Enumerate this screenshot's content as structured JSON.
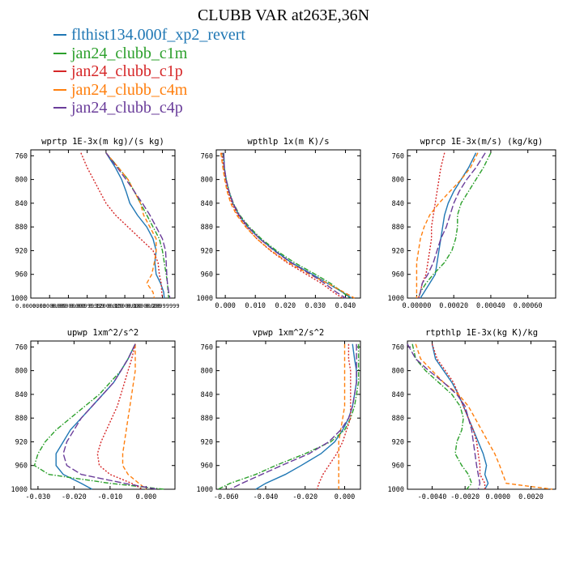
{
  "title": "CLUBB VAR at263E,36N",
  "series": [
    {
      "name": "flthist134.000f_xp2_revert",
      "color": "#1f77b4",
      "dash": ""
    },
    {
      "name": "jan24_clubb_c1m",
      "color": "#2ca02c",
      "dash": "6,2,1.5,2"
    },
    {
      "name": "jan24_clubb_c1p",
      "color": "#d62728",
      "dash": "2,2"
    },
    {
      "name": "jan24_clubb_c4m",
      "color": "#ff7f0e",
      "dash": "5,3"
    },
    {
      "name": "jan24_clubb_c4p",
      "color": "#6a3d9a",
      "dash": "8,3"
    }
  ],
  "chart_data": [
    {
      "type": "line",
      "title": "wprtp  1E-3x(m kg)/(s kg)",
      "xlim": [
        0.0,
        0.23
      ],
      "xticks": [
        0.0,
        0.03,
        0.06,
        0.09,
        0.12,
        0.15,
        0.18,
        0.21
      ],
      "xticklabels": [
        "0.0000000",
        "0.03000000",
        "0.06000000",
        "0.08999999",
        "0.12000000",
        "0.15000000",
        "0.18000000",
        "0.20999999"
      ],
      "ylim": [
        750,
        1000
      ],
      "yticks": [
        760,
        800,
        840,
        880,
        920,
        960,
        1000
      ],
      "y": [
        755,
        780,
        800,
        820,
        840,
        860,
        880,
        900,
        920,
        940,
        960,
        975,
        990,
        1000
      ],
      "series_values": [
        [
          0.12,
          0.135,
          0.145,
          0.152,
          0.158,
          0.17,
          0.185,
          0.195,
          0.2,
          0.198,
          0.2,
          0.207,
          0.212,
          0.213
        ],
        [
          0.12,
          0.14,
          0.155,
          0.165,
          0.175,
          0.185,
          0.195,
          0.205,
          0.21,
          0.213,
          0.216,
          0.218,
          0.219,
          0.22
        ],
        [
          0.08,
          0.09,
          0.1,
          0.11,
          0.12,
          0.135,
          0.155,
          0.175,
          0.195,
          0.203,
          0.205,
          0.208,
          0.209,
          0.21
        ],
        [
          0.12,
          0.14,
          0.155,
          0.165,
          0.175,
          0.18,
          0.19,
          0.2,
          0.2,
          0.197,
          0.193,
          0.185,
          0.195,
          0.197
        ],
        [
          0.12,
          0.138,
          0.152,
          0.165,
          0.178,
          0.19,
          0.2,
          0.21,
          0.215,
          0.216,
          0.217,
          0.218,
          0.22,
          0.222
        ]
      ]
    },
    {
      "type": "line",
      "title": "wpthlp  1x(m K)/s",
      "xlim": [
        -0.003,
        0.045
      ],
      "xticks": [
        0.0,
        0.01,
        0.02,
        0.03,
        0.04
      ],
      "xticklabels": [
        "0.000",
        "0.010",
        "0.020",
        "0.030",
        "0.040"
      ],
      "ylim": [
        750,
        1000
      ],
      "yticks": [
        760,
        800,
        840,
        880,
        920,
        960,
        1000
      ],
      "y": [
        755,
        780,
        800,
        820,
        840,
        860,
        880,
        900,
        920,
        940,
        960,
        975,
        990,
        1000
      ],
      "series_values": [
        [
          -0.0005,
          -0.0003,
          0.0003,
          0.0012,
          0.0025,
          0.0045,
          0.0075,
          0.0115,
          0.0165,
          0.022,
          0.029,
          0.034,
          0.039,
          0.042
        ],
        [
          -0.0008,
          -0.0004,
          0.0003,
          0.0013,
          0.0027,
          0.0048,
          0.008,
          0.012,
          0.017,
          0.023,
          0.03,
          0.035,
          0.039,
          0.0415
        ],
        [
          -0.0012,
          -0.0006,
          0.0,
          0.0009,
          0.0022,
          0.0042,
          0.007,
          0.0105,
          0.015,
          0.0205,
          0.027,
          0.032,
          0.036,
          0.039
        ],
        [
          -0.0015,
          -0.0008,
          -0.0002,
          0.0006,
          0.0018,
          0.0038,
          0.0068,
          0.0105,
          0.0152,
          0.021,
          0.028,
          0.034,
          0.0395,
          0.043
        ],
        [
          -0.0006,
          -0.0003,
          0.0003,
          0.0012,
          0.0026,
          0.0046,
          0.0076,
          0.0115,
          0.0162,
          0.0218,
          0.0285,
          0.033,
          0.037,
          0.04
        ]
      ]
    },
    {
      "type": "line",
      "title": "wprcp  1E-3x(m/s) (kg/kg)",
      "xlim": [
        -5e-05,
        0.00075
      ],
      "xticks": [
        0.0,
        0.0002,
        0.0004,
        0.0006
      ],
      "xticklabels": [
        "0.00000",
        "0.00020",
        "0.00040",
        "0.00060"
      ],
      "ylim": [
        750,
        1000
      ],
      "yticks": [
        760,
        800,
        840,
        880,
        920,
        960,
        1000
      ],
      "y": [
        755,
        780,
        800,
        820,
        840,
        860,
        880,
        900,
        920,
        940,
        960,
        975,
        990,
        1000
      ],
      "series_values": [
        [
          0.00032,
          0.00028,
          0.00024,
          0.0002,
          0.00017,
          0.00015,
          0.00014,
          0.00013,
          0.00012,
          0.00011,
          0.0001,
          7e-05,
          4e-05,
          2e-05
        ],
        [
          0.0004,
          0.00036,
          0.00032,
          0.00028,
          0.00024,
          0.00022,
          0.00022,
          0.00021,
          0.00019,
          0.00015,
          9e-05,
          5e-05,
          2e-05,
          1e-05
        ],
        [
          0.00015,
          0.00013,
          0.00012,
          0.00011,
          0.0001,
          9e-05,
          8e-05,
          8e-05,
          7e-05,
          6e-05,
          5e-05,
          3e-05,
          2e-05,
          1e-05
        ],
        [
          0.00033,
          0.00029,
          0.00024,
          0.00018,
          0.00012,
          7e-05,
          4e-05,
          2e-05,
          1e-05,
          0.0,
          0.0,
          0.0,
          0.0,
          0.0
        ],
        [
          0.00037,
          0.00032,
          0.00027,
          0.00023,
          0.0002,
          0.00018,
          0.00016,
          0.00013,
          0.00011,
          9e-05,
          6e-05,
          3e-05,
          2e-05,
          1e-05
        ]
      ]
    },
    {
      "type": "line",
      "title": "upwp  1xm^2/s^2",
      "xlim": [
        -0.032,
        0.008
      ],
      "xticks": [
        -0.03,
        -0.02,
        -0.01,
        0.0
      ],
      "xticklabels": [
        "-0.030",
        "-0.020",
        "-0.010",
        "0.000"
      ],
      "ylim": [
        750,
        1000
      ],
      "yticks": [
        760,
        800,
        840,
        880,
        920,
        960,
        1000
      ],
      "y": [
        755,
        780,
        800,
        820,
        840,
        860,
        880,
        900,
        920,
        940,
        960,
        975,
        990,
        1000
      ],
      "series_values": [
        [
          -0.003,
          -0.005,
          -0.007,
          -0.009,
          -0.012,
          -0.015,
          -0.018,
          -0.021,
          -0.023,
          -0.025,
          -0.025,
          -0.023,
          -0.018,
          -0.015
        ],
        [
          -0.003,
          -0.005,
          -0.007,
          -0.01,
          -0.013,
          -0.017,
          -0.021,
          -0.025,
          -0.028,
          -0.03,
          -0.031,
          -0.027,
          -0.01,
          0.005
        ],
        [
          -0.003,
          -0.004,
          -0.005,
          -0.006,
          -0.007,
          -0.008,
          -0.0095,
          -0.011,
          -0.0125,
          -0.0135,
          -0.013,
          -0.01,
          -0.004,
          -0.001
        ],
        [
          -0.003,
          -0.003,
          -0.003,
          -0.0035,
          -0.004,
          -0.0045,
          -0.005,
          -0.0055,
          -0.006,
          -0.0065,
          -0.0065,
          -0.005,
          -0.002,
          0.0
        ],
        [
          -0.003,
          -0.005,
          -0.007,
          -0.009,
          -0.012,
          -0.015,
          -0.018,
          -0.02,
          -0.022,
          -0.023,
          -0.022,
          -0.018,
          -0.006,
          0.003
        ]
      ]
    },
    {
      "type": "line",
      "title": "vpwp  1xm^2/s^2",
      "xlim": [
        -0.065,
        0.008
      ],
      "xticks": [
        -0.06,
        -0.04,
        -0.02,
        0.0
      ],
      "xticklabels": [
        "-0.060",
        "-0.040",
        "-0.020",
        "0.000"
      ],
      "ylim": [
        750,
        1000
      ],
      "yticks": [
        760,
        800,
        840,
        880,
        920,
        960,
        1000
      ],
      "y": [
        755,
        780,
        800,
        820,
        840,
        860,
        880,
        900,
        920,
        940,
        960,
        975,
        990,
        1000
      ],
      "series_values": [
        [
          0.004,
          0.005,
          0.006,
          0.006,
          0.005,
          0.004,
          0.002,
          -0.001,
          -0.005,
          -0.012,
          -0.022,
          -0.03,
          -0.04,
          -0.045
        ],
        [
          0.007,
          0.007,
          0.007,
          0.007,
          0.006,
          0.005,
          0.003,
          0.0,
          -0.007,
          -0.02,
          -0.035,
          -0.045,
          -0.058,
          -0.064
        ],
        [
          0.002,
          0.002,
          0.003,
          0.003,
          0.003,
          0.003,
          0.003,
          0.001,
          -0.001,
          -0.004,
          -0.008,
          -0.011,
          -0.013,
          -0.014
        ],
        [
          0.0,
          0.0,
          0.0,
          0.0,
          0.0,
          0.0,
          -0.001,
          -0.002,
          -0.003,
          -0.003,
          -0.003,
          -0.003,
          -0.003,
          -0.003
        ],
        [
          0.006,
          0.006,
          0.006,
          0.006,
          0.005,
          0.004,
          0.002,
          -0.002,
          -0.008,
          -0.018,
          -0.032,
          -0.042,
          -0.052,
          -0.058
        ]
      ]
    },
    {
      "type": "line",
      "title": "rtpthlp  1E-3x(kg K)/kg",
      "xlim": [
        -0.0055,
        0.0035
      ],
      "xticks": [
        -0.004,
        -0.002,
        0.0,
        0.002
      ],
      "xticklabels": [
        "-0.0040",
        "-0.0020",
        "0.0000",
        "0.0020"
      ],
      "ylim": [
        750,
        1000
      ],
      "yticks": [
        760,
        800,
        840,
        880,
        920,
        960,
        1000
      ],
      "y": [
        755,
        780,
        800,
        820,
        840,
        860,
        880,
        900,
        920,
        940,
        960,
        975,
        990,
        1000
      ],
      "series_values": [
        [
          -0.004,
          -0.0038,
          -0.0033,
          -0.0028,
          -0.0024,
          -0.0021,
          -0.0018,
          -0.0015,
          -0.0012,
          -0.0009,
          -0.0007,
          -0.0008,
          -0.0006,
          -0.0008
        ],
        [
          -0.0052,
          -0.005,
          -0.0044,
          -0.0036,
          -0.0028,
          -0.0023,
          -0.0021,
          -0.0022,
          -0.0025,
          -0.0026,
          -0.0022,
          -0.0018,
          -0.0016,
          -0.0019
        ],
        [
          -0.004,
          -0.0037,
          -0.0032,
          -0.0027,
          -0.0024,
          -0.0021,
          -0.0018,
          -0.0015,
          -0.0013,
          -0.0012,
          -0.0011,
          -0.0011,
          -0.0008,
          -0.0008
        ],
        [
          -0.005,
          -0.0047,
          -0.004,
          -0.0033,
          -0.0024,
          -0.0018,
          -0.0014,
          -0.001,
          -0.0006,
          -0.0002,
          0.0001,
          0.0003,
          0.0005,
          0.0033
        ],
        [
          -0.0055,
          -0.005,
          -0.0042,
          -0.0033,
          -0.0025,
          -0.002,
          -0.0018,
          -0.0016,
          -0.0015,
          -0.0014,
          -0.0013,
          -0.0012,
          -0.0011,
          -0.0012
        ]
      ]
    }
  ]
}
